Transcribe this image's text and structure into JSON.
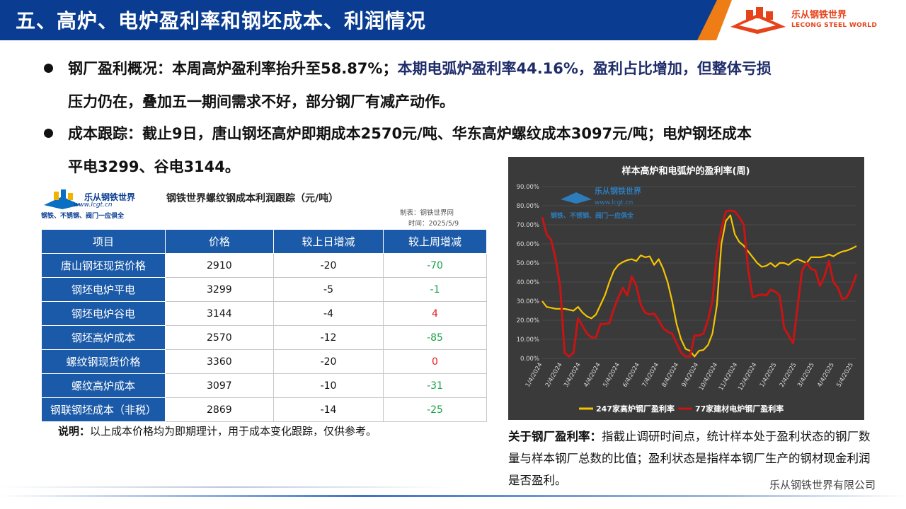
{
  "header": {
    "title": "五、高炉、电炉盈利率和钢坯成本、利润情况",
    "logo_cn": "乐从钢铁世界",
    "logo_en": "LECONG STEEL WORLD"
  },
  "bullets": {
    "b1_part1": "钢厂盈利概况：本周高炉盈利率抬升至58.87%；",
    "b1_part2": "本期电弧炉盈利率44.16%，盈利占比增加，但整体亏损",
    "b1_line2": "压力仍在，叠加五一期间需求不好，部分钢厂有减产动作。",
    "b2_line1": "成本跟踪：截止9日，唐山钢坯高炉即期成本2570元/吨、华东高炉螺纹成本3097元/吨；电炉钢坯成本",
    "b2_line2": "平电3299、谷电3144。"
  },
  "table_panel": {
    "logo_cn": "乐从钢铁世界",
    "logo_url": "www.lcgt.cn",
    "logo_slogan": "钢铁、不锈钢、阀门一应俱全",
    "title": "钢铁世界螺纹钢成本利润跟踪（元/吨）",
    "maker": "制表：钢铁世界网",
    "date": "时间：2025/5/9",
    "headers": [
      "项目",
      "价格",
      "较上日增减",
      "较上周增减"
    ],
    "rows": [
      [
        "唐山钢坯现货价格",
        "2910",
        "-20",
        "-70"
      ],
      [
        "钢坯电炉平电",
        "3299",
        "-5",
        "-1"
      ],
      [
        "钢坯电炉谷电",
        "3144",
        "-4",
        "4"
      ],
      [
        "钢坯高炉成本",
        "2570",
        "-12",
        "-85"
      ],
      [
        "螺纹钢现货价格",
        "3360",
        "-20",
        "0"
      ],
      [
        "螺纹高炉成本",
        "3097",
        "-10",
        "-31"
      ],
      [
        "钢联钢坯成本（非税）",
        "2869",
        "-14",
        "-25"
      ]
    ],
    "note_label": "说明：",
    "note_text": "以上成本价格均为即期理计，用于成本变化跟踪，仅供参考。"
  },
  "chart_data": {
    "type": "line",
    "title": "样本高炉和电弧炉的盈利率(周)",
    "watermark_cn": "乐从钢铁世界",
    "watermark_url": "www.lcgt.cn",
    "watermark_slogan": "钢铁、不锈钢、阀门一应俱全",
    "ylim": [
      0,
      90
    ],
    "yticks": [
      "0.00%",
      "10.00%",
      "20.00%",
      "30.00%",
      "40.00%",
      "50.00%",
      "60.00%",
      "70.00%",
      "80.00%",
      "90.00%"
    ],
    "xticks": [
      "1/4/2024",
      "2/4/2024",
      "3/4/2024",
      "4/4/2024",
      "5/4/2024",
      "6/4/2024",
      "7/4/2024",
      "8/4/2024",
      "9/4/2024",
      "10/4/2024",
      "11/4/2024",
      "12/4/2024",
      "1/4/2025",
      "2/4/2025",
      "3/4/2025",
      "4/4/2025",
      "5/4/2025"
    ],
    "x_start": "2024-01-04",
    "x_end": "2025-05-09",
    "series": [
      {
        "name": "247家高炉钢厂盈利率",
        "color": "#f5c400",
        "points": [
          [
            "2024-01-04",
            30
          ],
          [
            "2024-01-11",
            27
          ],
          [
            "2024-01-18",
            26.5
          ],
          [
            "2024-01-25",
            26
          ],
          [
            "2024-02-01",
            26
          ],
          [
            "2024-02-08",
            26
          ],
          [
            "2024-02-22",
            25
          ],
          [
            "2024-02-29",
            27
          ],
          [
            "2024-03-07",
            24
          ],
          [
            "2024-03-14",
            22
          ],
          [
            "2024-03-21",
            21
          ],
          [
            "2024-03-28",
            23
          ],
          [
            "2024-04-04",
            28
          ],
          [
            "2024-04-11",
            33
          ],
          [
            "2024-04-18",
            40
          ],
          [
            "2024-04-25",
            46
          ],
          [
            "2024-05-02",
            49
          ],
          [
            "2024-05-09",
            50.5
          ],
          [
            "2024-05-16",
            51.5
          ],
          [
            "2024-05-23",
            52
          ],
          [
            "2024-05-30",
            51
          ],
          [
            "2024-06-06",
            54
          ],
          [
            "2024-06-13",
            53
          ],
          [
            "2024-06-20",
            53.5
          ],
          [
            "2024-06-27",
            49
          ],
          [
            "2024-07-04",
            52
          ],
          [
            "2024-07-11",
            47
          ],
          [
            "2024-07-18",
            40
          ],
          [
            "2024-07-25",
            30
          ],
          [
            "2024-08-01",
            18
          ],
          [
            "2024-08-08",
            10
          ],
          [
            "2024-08-15",
            5
          ],
          [
            "2024-08-22",
            4
          ],
          [
            "2024-08-29",
            1
          ],
          [
            "2024-09-05",
            4
          ],
          [
            "2024-09-12",
            4.5
          ],
          [
            "2024-09-19",
            7
          ],
          [
            "2024-09-26",
            13
          ],
          [
            "2024-10-03",
            28
          ],
          [
            "2024-10-10",
            60
          ],
          [
            "2024-10-17",
            72
          ],
          [
            "2024-10-24",
            75
          ],
          [
            "2024-10-31",
            65
          ],
          [
            "2024-11-07",
            61
          ],
          [
            "2024-11-14",
            59
          ],
          [
            "2024-11-21",
            56
          ],
          [
            "2024-11-28",
            53
          ],
          [
            "2024-12-05",
            50
          ],
          [
            "2024-12-12",
            48
          ],
          [
            "2024-12-19",
            48.5
          ],
          [
            "2024-12-26",
            50
          ],
          [
            "2025-01-02",
            48
          ],
          [
            "2025-01-09",
            50
          ],
          [
            "2025-01-16",
            50
          ],
          [
            "2025-01-23",
            49
          ],
          [
            "2025-01-30",
            51
          ],
          [
            "2025-02-06",
            52
          ],
          [
            "2025-02-13",
            51
          ],
          [
            "2025-02-20",
            50
          ],
          [
            "2025-02-27",
            53
          ],
          [
            "2025-03-06",
            53
          ],
          [
            "2025-03-13",
            53
          ],
          [
            "2025-03-20",
            53.5
          ],
          [
            "2025-03-27",
            54.5
          ],
          [
            "2025-04-03",
            53.5
          ],
          [
            "2025-04-10",
            55
          ],
          [
            "2025-04-17",
            56
          ],
          [
            "2025-04-24",
            56.5
          ],
          [
            "2025-05-01",
            57.5
          ],
          [
            "2025-05-09",
            58.87
          ]
        ]
      },
      {
        "name": "77家建材电炉钢厂盈利率",
        "color": "#c81414",
        "points": [
          [
            "2024-01-04",
            74
          ],
          [
            "2024-01-11",
            65
          ],
          [
            "2024-01-18",
            62
          ],
          [
            "2024-01-25",
            52
          ],
          [
            "2024-02-01",
            38
          ],
          [
            "2024-02-08",
            3
          ],
          [
            "2024-02-15",
            1
          ],
          [
            "2024-02-22",
            3
          ],
          [
            "2024-02-29",
            21
          ],
          [
            "2024-03-07",
            17
          ],
          [
            "2024-03-14",
            13
          ],
          [
            "2024-03-21",
            11
          ],
          [
            "2024-03-28",
            11
          ],
          [
            "2024-04-04",
            18
          ],
          [
            "2024-04-11",
            18
          ],
          [
            "2024-04-18",
            18.5
          ],
          [
            "2024-04-25",
            26
          ],
          [
            "2024-05-02",
            32
          ],
          [
            "2024-05-09",
            37
          ],
          [
            "2024-05-16",
            33
          ],
          [
            "2024-05-23",
            43
          ],
          [
            "2024-05-30",
            38
          ],
          [
            "2024-06-06",
            28
          ],
          [
            "2024-06-13",
            24
          ],
          [
            "2024-06-20",
            23
          ],
          [
            "2024-06-27",
            23.5
          ],
          [
            "2024-07-04",
            20
          ],
          [
            "2024-07-11",
            16
          ],
          [
            "2024-07-18",
            14
          ],
          [
            "2024-07-25",
            13
          ],
          [
            "2024-08-01",
            8
          ],
          [
            "2024-08-08",
            3
          ],
          [
            "2024-08-15",
            1
          ],
          [
            "2024-08-22",
            1
          ],
          [
            "2024-08-29",
            12
          ],
          [
            "2024-09-05",
            12
          ],
          [
            "2024-09-12",
            13
          ],
          [
            "2024-09-19",
            20
          ],
          [
            "2024-09-26",
            30
          ],
          [
            "2024-10-03",
            55
          ],
          [
            "2024-10-10",
            68
          ],
          [
            "2024-10-17",
            77
          ],
          [
            "2024-10-24",
            77.5
          ],
          [
            "2024-10-31",
            77
          ],
          [
            "2024-11-07",
            74
          ],
          [
            "2024-11-14",
            70
          ],
          [
            "2024-11-21",
            46
          ],
          [
            "2024-11-28",
            32
          ],
          [
            "2024-12-05",
            33
          ],
          [
            "2024-12-12",
            33.5
          ],
          [
            "2024-12-19",
            33
          ],
          [
            "2024-12-26",
            36
          ],
          [
            "2025-01-02",
            35
          ],
          [
            "2025-01-09",
            33
          ],
          [
            "2025-01-16",
            16
          ],
          [
            "2025-01-23",
            12
          ],
          [
            "2025-01-30",
            8
          ],
          [
            "2025-02-06",
            27
          ],
          [
            "2025-02-13",
            46
          ],
          [
            "2025-02-20",
            50
          ],
          [
            "2025-02-27",
            47
          ],
          [
            "2025-03-06",
            46
          ],
          [
            "2025-03-13",
            38
          ],
          [
            "2025-03-20",
            43
          ],
          [
            "2025-03-27",
            51
          ],
          [
            "2025-04-03",
            40
          ],
          [
            "2025-04-10",
            37
          ],
          [
            "2025-04-17",
            31
          ],
          [
            "2025-04-24",
            32
          ],
          [
            "2025-05-01",
            37
          ],
          [
            "2025-05-09",
            44.16
          ]
        ]
      }
    ]
  },
  "explain": {
    "label": "关于钢厂盈利率：",
    "text": "指截止调研时间点，统计样本处于盈利状态的钢厂数量与样本钢厂总数的比值；盈利状态是指样本钢厂生产的钢材现金利润是否盈利。"
  },
  "footer": {
    "company": "乐从钢铁世界有限公司"
  }
}
